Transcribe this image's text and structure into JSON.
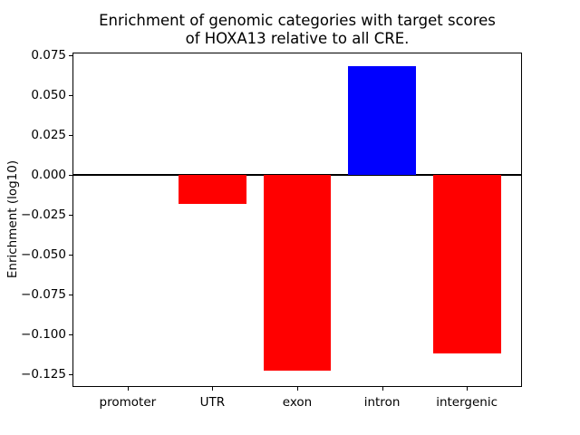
{
  "chart": {
    "title_line1": "Enrichment of genomic categories with target scores",
    "title_line2": "of HOXA13 relative to all CRE.",
    "ylabel": "Enrichment (log10)"
  },
  "chart_data": {
    "type": "bar",
    "title": "Enrichment of genomic categories with target scores\nof HOXA13 relative to all CRE.",
    "xlabel": "",
    "ylabel": "Enrichment (log10)",
    "categories": [
      "promoter",
      "UTR",
      "exon",
      "intron",
      "intergenic"
    ],
    "values": [
      0.0,
      -0.018,
      -0.123,
      0.068,
      -0.112
    ],
    "bar_colors": [
      "#ff0000",
      "#ff0000",
      "#ff0000",
      "#0000ff",
      "#ff0000"
    ],
    "positive_color": "#0000ff",
    "negative_color": "#ff0000",
    "yticks": [
      0.075,
      0.05,
      0.025,
      0.0,
      -0.025,
      -0.05,
      -0.075,
      -0.1,
      -0.125
    ],
    "ytick_labels": [
      "0.075",
      "0.050",
      "0.025",
      "0.000",
      "−0.025",
      "−0.050",
      "−0.075",
      "−0.100",
      "−0.125"
    ],
    "ylim": [
      -0.1326,
      0.0762
    ],
    "xlim": [
      -0.64,
      4.64
    ],
    "bar_width_fraction": 0.8,
    "zero_line": true,
    "grid": false,
    "legend": null,
    "spine_color": "#000000",
    "background_color": "#ffffff"
  }
}
